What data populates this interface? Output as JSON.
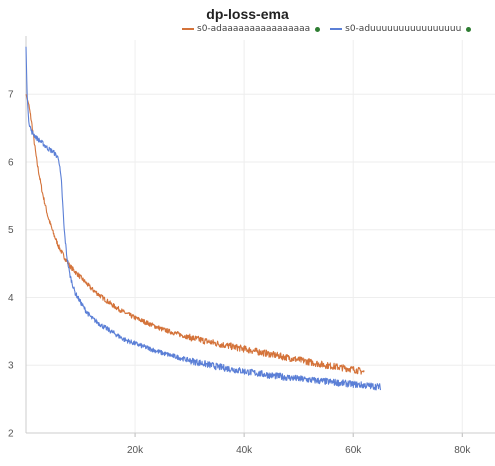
{
  "chart_data": {
    "type": "line",
    "title": "dp-loss-ema",
    "xlabel": "",
    "ylabel": "",
    "xlim": [
      0,
      86000
    ],
    "ylim": [
      2,
      7.8
    ],
    "x_ticks": [
      20000,
      40000,
      60000,
      80000
    ],
    "x_tick_labels": [
      "20k",
      "40k",
      "60k",
      "80k"
    ],
    "y_ticks": [
      2,
      3,
      4,
      5,
      6,
      7
    ],
    "y_tick_labels": [
      "2",
      "3",
      "4",
      "5",
      "6",
      "7"
    ],
    "grid": true,
    "legend_position": "top-center",
    "series": [
      {
        "name": "s0-adaaaaaaaaaaaaaaaa",
        "color": "#d4733a",
        "legend_dot_color": "#2e7d32",
        "x": [
          0,
          500,
          1000,
          2000,
          3000,
          4000,
          5000,
          6000,
          7000,
          8000,
          9000,
          10000,
          12000,
          14000,
          16000,
          18000,
          20000,
          25000,
          30000,
          35000,
          40000,
          45000,
          50000,
          55000,
          60000,
          62000
        ],
        "y": [
          7.0,
          6.85,
          6.6,
          6.0,
          5.55,
          5.2,
          4.95,
          4.75,
          4.6,
          4.47,
          4.38,
          4.3,
          4.13,
          4.0,
          3.88,
          3.78,
          3.7,
          3.53,
          3.41,
          3.32,
          3.24,
          3.16,
          3.08,
          3.0,
          2.94,
          2.9
        ]
      },
      {
        "name": "s0-aduuuuuuuuuuuuuuuu",
        "color": "#5b7fd6",
        "legend_dot_color": "#2e7d32",
        "x": [
          0,
          200,
          500,
          1000,
          2000,
          3000,
          4000,
          5000,
          6000,
          6500,
          7000,
          7500,
          8000,
          8500,
          9000,
          10000,
          11000,
          12000,
          14000,
          16000,
          18000,
          20000,
          25000,
          30000,
          35000,
          40000,
          45000,
          50000,
          55000,
          60000,
          65000
        ],
        "y": [
          7.7,
          7.0,
          6.6,
          6.45,
          6.35,
          6.28,
          6.2,
          6.15,
          6.05,
          5.7,
          5.0,
          4.6,
          4.35,
          4.2,
          4.07,
          3.93,
          3.8,
          3.7,
          3.58,
          3.48,
          3.38,
          3.32,
          3.18,
          3.07,
          2.98,
          2.91,
          2.85,
          2.8,
          2.76,
          2.72,
          2.68
        ]
      }
    ]
  }
}
